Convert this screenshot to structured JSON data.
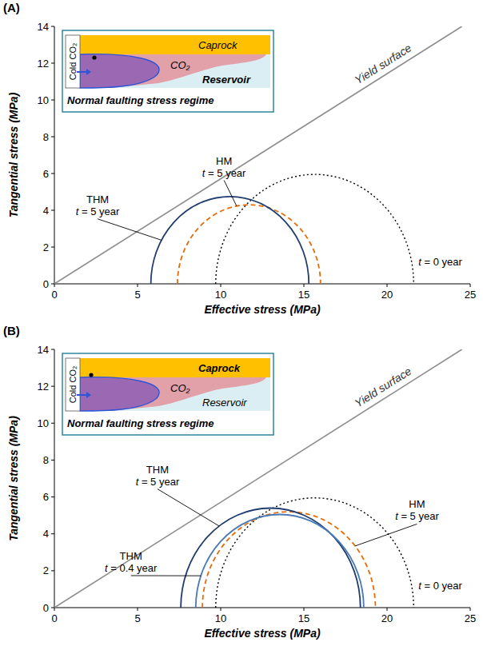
{
  "chart_data": [
    {
      "type": "line",
      "panel_label": "(A)",
      "x_label": "Effective stress (MPa)",
      "y_label": "Tangential stress (MPa)",
      "xlim": [
        0,
        25
      ],
      "ylim": [
        0,
        14
      ],
      "xticks": [
        0,
        5,
        10,
        15,
        20,
        25
      ],
      "yticks": [
        0,
        2,
        4,
        6,
        8,
        10,
        12,
        14
      ],
      "series": [
        {
          "name": "Yield surface",
          "type": "line",
          "color": "#8c8c8c",
          "line_style": "solid",
          "x": [
            0,
            24.5
          ],
          "values": [
            0,
            14
          ]
        },
        {
          "name": "t = 0 year",
          "type": "circle",
          "color": "#000000",
          "line_style": "dotted",
          "x": [
            9.7,
            21.6
          ]
        },
        {
          "name": "HM",
          "time": "t = 5 year",
          "type": "circle",
          "color": "#e46c0a",
          "line_style": "dashed",
          "x": [
            7.4,
            16.0
          ]
        },
        {
          "name": "THM",
          "time": "t = 5 year",
          "type": "circle",
          "color": "#1f3d6e",
          "line_style": "solid",
          "x": [
            5.8,
            15.3
          ]
        }
      ],
      "inset": {
        "caprock": "Caprock",
        "plume": "CO₂",
        "reservoir": "Reservoir",
        "injection": "Cold CO₂",
        "regime": "Normal faulting stress regime"
      }
    },
    {
      "type": "line",
      "panel_label": "(B)",
      "x_label": "Effective stress (MPa)",
      "y_label": "Tangential stress (MPa)",
      "xlim": [
        0,
        25
      ],
      "ylim": [
        0,
        14
      ],
      "xticks": [
        0,
        5,
        10,
        15,
        20,
        25
      ],
      "yticks": [
        0,
        2,
        4,
        6,
        8,
        10,
        12,
        14
      ],
      "series": [
        {
          "name": "Yield surface",
          "type": "line",
          "color": "#8c8c8c",
          "line_style": "solid",
          "x": [
            0,
            24.5
          ],
          "values": [
            0,
            14
          ]
        },
        {
          "name": "t = 0 year",
          "type": "circle",
          "color": "#000000",
          "line_style": "dotted",
          "x": [
            9.7,
            21.6
          ]
        },
        {
          "name": "HM",
          "time": "t = 5 year",
          "type": "circle",
          "color": "#e46c0a",
          "line_style": "dashed",
          "x": [
            8.9,
            19.3
          ]
        },
        {
          "name": "THM",
          "time": "t = 5 year",
          "type": "circle",
          "color": "#1f3d6e",
          "line_style": "solid",
          "x": [
            7.6,
            18.4
          ]
        },
        {
          "name": "THM",
          "time": "t = 0.4 year",
          "type": "circle",
          "color": "#4a7ab5",
          "line_style": "solid",
          "x": [
            8.5,
            18.6
          ]
        }
      ],
      "inset": {
        "caprock": "Caprock",
        "plume": "CO₂",
        "reservoir": "Reservoir",
        "injection": "Cold CO₂",
        "regime": "Normal faulting stress regime"
      }
    }
  ]
}
